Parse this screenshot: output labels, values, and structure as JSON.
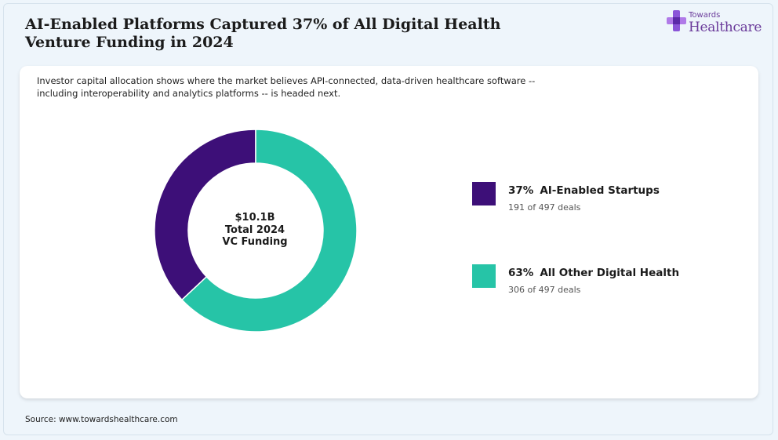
{
  "title": "AI-Enabled Platforms Captured 37% of All Digital Health\nVenture Funding in 2024",
  "logo": {
    "small_text": "Towards",
    "big_text": "Healthcare"
  },
  "subtitle": "Investor capital allocation shows where the market believes API-connected, data-driven healthcare software -- including interoperability and analytics platforms -- is headed next.",
  "center_label": "$10.1B\nTotal 2024\nVC Funding",
  "source": "Source: www.towardshealthcare.com",
  "chart_data": {
    "type": "pie",
    "title": "AI-Enabled Platforms Captured 37% of All Digital Health Venture Funding in 2024",
    "total": {
      "amount": "$10.1B",
      "label": "Total 2024 VC Funding"
    },
    "slices": [
      {
        "percent_label": "37%",
        "name": "AI-Enabled Startups",
        "value": 37,
        "deals": "191 of 497 deals",
        "color": "#3d0f78"
      },
      {
        "percent_label": "63%",
        "name": "All Other Digital Health",
        "value": 63,
        "deals": "306 of 497 deals",
        "color": "#26c4a7"
      }
    ],
    "legend_placement": "right"
  }
}
